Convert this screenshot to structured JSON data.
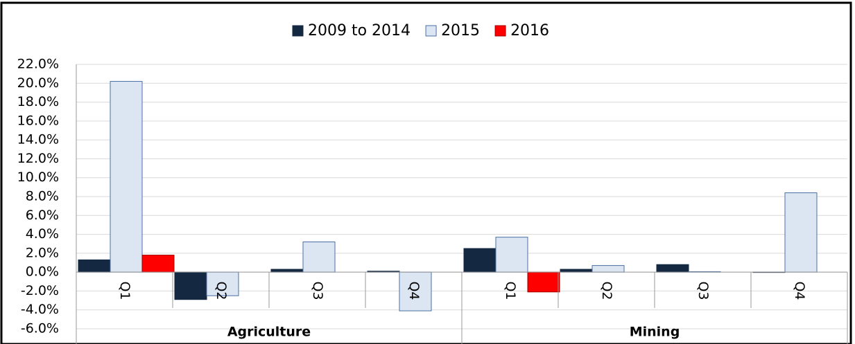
{
  "chart_data": {
    "type": "bar",
    "categories": [
      "Q1",
      "Q2",
      "Q3",
      "Q4",
      "Q1",
      "Q2",
      "Q3",
      "Q4"
    ],
    "groups": [
      "Agriculture",
      "Mining"
    ],
    "series": [
      {
        "name": "2009 to 2014",
        "color": "#142841",
        "values": [
          1.3,
          -2.9,
          0.3,
          0.1,
          2.5,
          0.3,
          0.8,
          0.0
        ]
      },
      {
        "name": "2015",
        "color": "#dce6f2",
        "values": [
          20.2,
          -2.5,
          3.2,
          -4.1,
          3.7,
          0.7,
          0.05,
          8.4
        ]
      },
      {
        "name": "2016",
        "color": "#ff0000",
        "values": [
          1.8,
          null,
          null,
          null,
          -2.1,
          null,
          null,
          null
        ]
      }
    ],
    "ylim": [
      -6,
      22
    ],
    "yticks": [
      {
        "value": -6,
        "label": "-6.0%"
      },
      {
        "value": -4,
        "label": "-4.0%"
      },
      {
        "value": -2,
        "label": "-2.0%"
      },
      {
        "value": 0,
        "label": "0.0%"
      },
      {
        "value": 2,
        "label": "2.0%"
      },
      {
        "value": 4,
        "label": "4.0%"
      },
      {
        "value": 6,
        "label": "6.0%"
      },
      {
        "value": 8,
        "label": "8.0%"
      },
      {
        "value": 10,
        "label": "10.0%"
      },
      {
        "value": 12,
        "label": "12.0%"
      },
      {
        "value": 14,
        "label": "14.0%"
      },
      {
        "value": 16,
        "label": "16.0%"
      },
      {
        "value": 18,
        "label": "18.0%"
      },
      {
        "value": 20,
        "label": "20.0%"
      },
      {
        "value": 22,
        "label": "22.0%"
      }
    ],
    "grid": true
  }
}
